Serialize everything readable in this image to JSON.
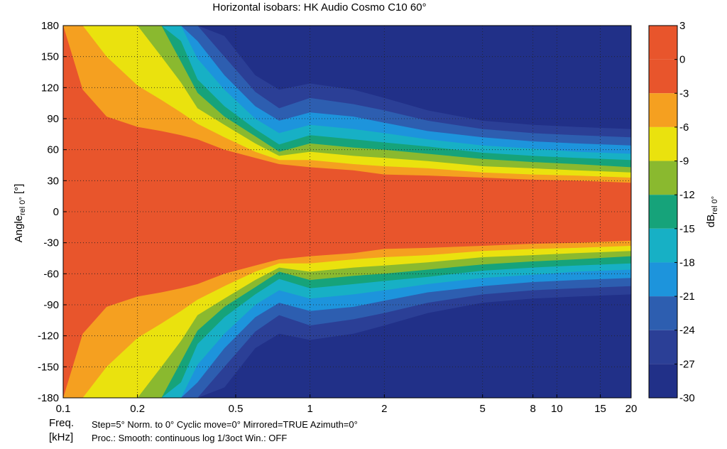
{
  "chart_data": {
    "type": "heatmap",
    "title": "Horizontal isobars: HK Audio  Cosmo  C10 60°",
    "xlabel": "Freq.",
    "xunit": "[kHz]",
    "ylabel_main": "Angle",
    "ylabel_sub": "rel 0°",
    "ylabel_unit": " [°]",
    "colorbar_label_main": "dB",
    "colorbar_label_sub": "rel 0°",
    "x_scale": "log",
    "xlim": [
      0.1,
      20
    ],
    "ylim": [
      -180,
      180
    ],
    "x_ticks": [
      0.1,
      0.2,
      0.5,
      1,
      2,
      5,
      8,
      10,
      15,
      20
    ],
    "x_tick_labels": [
      "0.1",
      "0.2",
      "0.5",
      "1",
      "2",
      "5",
      "8",
      "10",
      "15",
      "20"
    ],
    "y_ticks": [
      180,
      150,
      120,
      90,
      60,
      30,
      0,
      -30,
      -60,
      -90,
      -120,
      -150,
      -180
    ],
    "y_tick_labels": [
      "180",
      "150",
      "120",
      "90",
      "60",
      "30",
      "0",
      "-30",
      "-60",
      "-90",
      "-120",
      "-150",
      "-180"
    ],
    "colorbar_levels": [
      3,
      0,
      -3,
      -6,
      -9,
      -12,
      -15,
      -18,
      -21,
      -24,
      -27,
      -30
    ],
    "colorbar_tick_labels": [
      "3",
      "0",
      "-3",
      "-6",
      "-9",
      "-12",
      "-15",
      "-18",
      "-21",
      "-24",
      "-27",
      "-30"
    ],
    "band_colors": [
      "#e8552c",
      "#f5a020",
      "#eae20e",
      "#8ab92f",
      "#16a37a",
      "#17b0c5",
      "#1d94dc",
      "#2d5eb0",
      "#2b3f96",
      "#213088"
    ],
    "grid": true,
    "coverage_deg": [
      {
        "f": 0.1,
        "a": [
          180,
          180,
          180,
          180,
          180,
          180,
          180,
          180,
          180,
          180
        ]
      },
      {
        "f": 0.12,
        "a": [
          118,
          180,
          180,
          180,
          180,
          180,
          180,
          180,
          180,
          180
        ]
      },
      {
        "f": 0.15,
        "a": [
          92,
          150,
          180,
          180,
          180,
          180,
          180,
          180,
          180,
          180
        ]
      },
      {
        "f": 0.2,
        "a": [
          82,
          122,
          180,
          180,
          180,
          180,
          180,
          180,
          180,
          180
        ]
      },
      {
        "f": 0.25,
        "a": [
          78,
          108,
          150,
          180,
          180,
          180,
          180,
          180,
          180,
          180
        ]
      },
      {
        "f": 0.3,
        "a": [
          74,
          96,
          125,
          145,
          165,
          180,
          180,
          180,
          180,
          180
        ]
      },
      {
        "f": 0.35,
        "a": [
          70,
          85,
          100,
          115,
          128,
          148,
          165,
          180,
          180,
          180
        ]
      },
      {
        "f": 0.45,
        "a": [
          60,
          72,
          84,
          92,
          102,
          118,
          132,
          150,
          170,
          180
        ]
      },
      {
        "f": 0.6,
        "a": [
          52,
          58,
          66,
          73,
          80,
          90,
          102,
          116,
          132,
          150
        ]
      },
      {
        "f": 0.75,
        "a": [
          46,
          50,
          54,
          58,
          65,
          76,
          88,
          100,
          118,
          136
        ]
      },
      {
        "f": 1,
        "a": [
          43,
          50,
          58,
          66,
          74,
          84,
          96,
          110,
          124,
          138
        ]
      },
      {
        "f": 1.5,
        "a": [
          40,
          46,
          54,
          62,
          70,
          80,
          92,
          104,
          118,
          132
        ]
      },
      {
        "f": 2,
        "a": [
          36,
          44,
          52,
          60,
          67,
          76,
          86,
          98,
          110,
          124
        ]
      },
      {
        "f": 3,
        "a": [
          35,
          42,
          49,
          56,
          63,
          70,
          78,
          88,
          98,
          108
        ]
      },
      {
        "f": 5,
        "a": [
          33,
          38,
          44,
          51,
          57,
          64,
          72,
          80,
          88,
          96
        ]
      },
      {
        "f": 8,
        "a": [
          31,
          36,
          42,
          48,
          54,
          61,
          68,
          76,
          84,
          92
        ]
      },
      {
        "f": 12,
        "a": [
          30,
          35,
          40,
          46,
          52,
          58,
          66,
          74,
          82,
          90
        ]
      },
      {
        "f": 20,
        "a": [
          28,
          33,
          38,
          43,
          50,
          56,
          64,
          72,
          80,
          88
        ]
      }
    ]
  },
  "footer": {
    "line1": "Step=5°   Norm. to 0°   Cyclic move=0°   Mirrored=TRUE   Azimuth=0°",
    "line2": "Proc.: Smooth: continuous log 1/3oct    Win.: OFF"
  }
}
